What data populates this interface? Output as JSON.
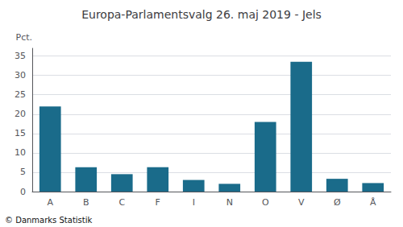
{
  "chart_data": {
    "type": "bar",
    "title": "Europa-Parlamentsvalg 26. maj 2019 - Jels",
    "ylabel": "Pct.",
    "annotations": [
      "© Danmarks Statistik"
    ],
    "categories": [
      "A",
      "B",
      "C",
      "F",
      "I",
      "N",
      "O",
      "V",
      "Ø",
      "Å"
    ],
    "values": [
      22.0,
      6.3,
      4.5,
      6.3,
      3.0,
      2.0,
      18.0,
      33.5,
      3.3,
      2.2
    ],
    "color": "#1a6b8a",
    "ylim": [
      0,
      37
    ],
    "yticks": [
      0,
      5,
      10,
      15,
      20,
      25,
      30,
      35
    ],
    "grid": true
  }
}
